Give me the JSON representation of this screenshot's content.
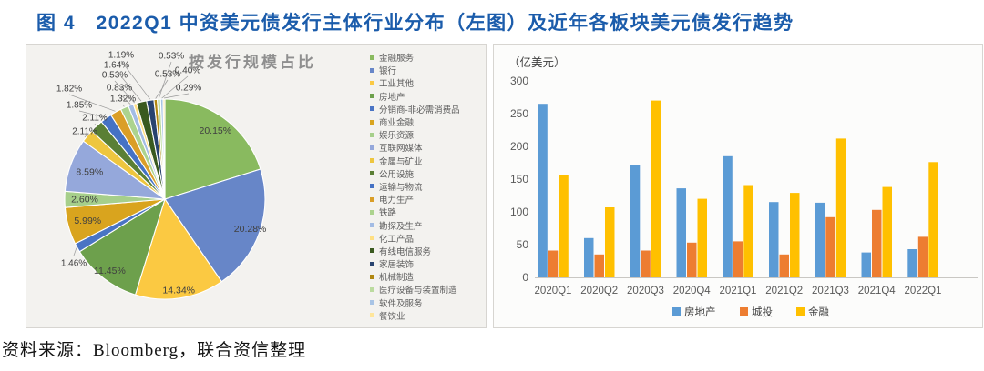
{
  "figure": {
    "title": "图 4　2022Q1 中资美元债发行主体行业分布（左图）及近年各板块美元债发行趋势",
    "source": "资料来源：Bloomberg，联合资信整理"
  },
  "chart_data": [
    {
      "type": "pie",
      "title": "按发行规模占比",
      "legend_position": "right",
      "labels": [
        "金融服务",
        "银行",
        "工业其他",
        "房地产",
        "分销商-非必需消费品",
        "商业金融",
        "娱乐资源",
        "互联网媒体",
        "金属与矿业",
        "公用设施",
        "运输与物流",
        "电力生产",
        "铁路",
        "勘探及生产",
        "化工产品",
        "有线电信服务",
        "家居装饰",
        "机械制造",
        "医疗设备与装置制造",
        "软件及服务",
        "餐饮业"
      ],
      "values_pct": [
        20.15,
        20.28,
        14.34,
        11.45,
        1.46,
        5.99,
        2.6,
        8.59,
        2.11,
        2.11,
        1.85,
        1.82,
        1.32,
        0.83,
        0.53,
        1.64,
        1.19,
        0.53,
        0.53,
        0.4,
        0.29
      ],
      "colors": [
        "#89ba5f",
        "#6786c8",
        "#fbc942",
        "#6da04c",
        "#4a74c4",
        "#d9a41e",
        "#a6cf8b",
        "#95a8db",
        "#eec63f",
        "#5a7f35",
        "#4572c4",
        "#da9e27",
        "#acd38e",
        "#a3bce4",
        "#ffdf82",
        "#3a5a20",
        "#28436f",
        "#b08710",
        "#bbdb9f",
        "#a8c4e5",
        "#ffe69b"
      ]
    },
    {
      "type": "bar",
      "unit_label": "（亿美元）",
      "categories": [
        "2020Q1",
        "2020Q2",
        "2020Q3",
        "2020Q4",
        "2021Q1",
        "2021Q2",
        "2021Q3",
        "2021Q4",
        "2022Q1"
      ],
      "series": [
        {
          "name": "房地产",
          "color": "#5b9bd5",
          "values": [
            265,
            60,
            171,
            136,
            185,
            115,
            114,
            38,
            43
          ]
        },
        {
          "name": "城投",
          "color": "#ed7d31",
          "values": [
            41,
            35,
            41,
            53,
            55,
            35,
            92,
            103,
            62
          ]
        },
        {
          "name": "金融",
          "color": "#ffc000",
          "values": [
            156,
            107,
            270,
            120,
            141,
            129,
            212,
            138,
            176
          ]
        }
      ],
      "ylim": [
        0,
        300
      ],
      "yticks": [
        0,
        50,
        100,
        150,
        200,
        250,
        300
      ],
      "grid": false,
      "legend_position": "bottom"
    }
  ]
}
